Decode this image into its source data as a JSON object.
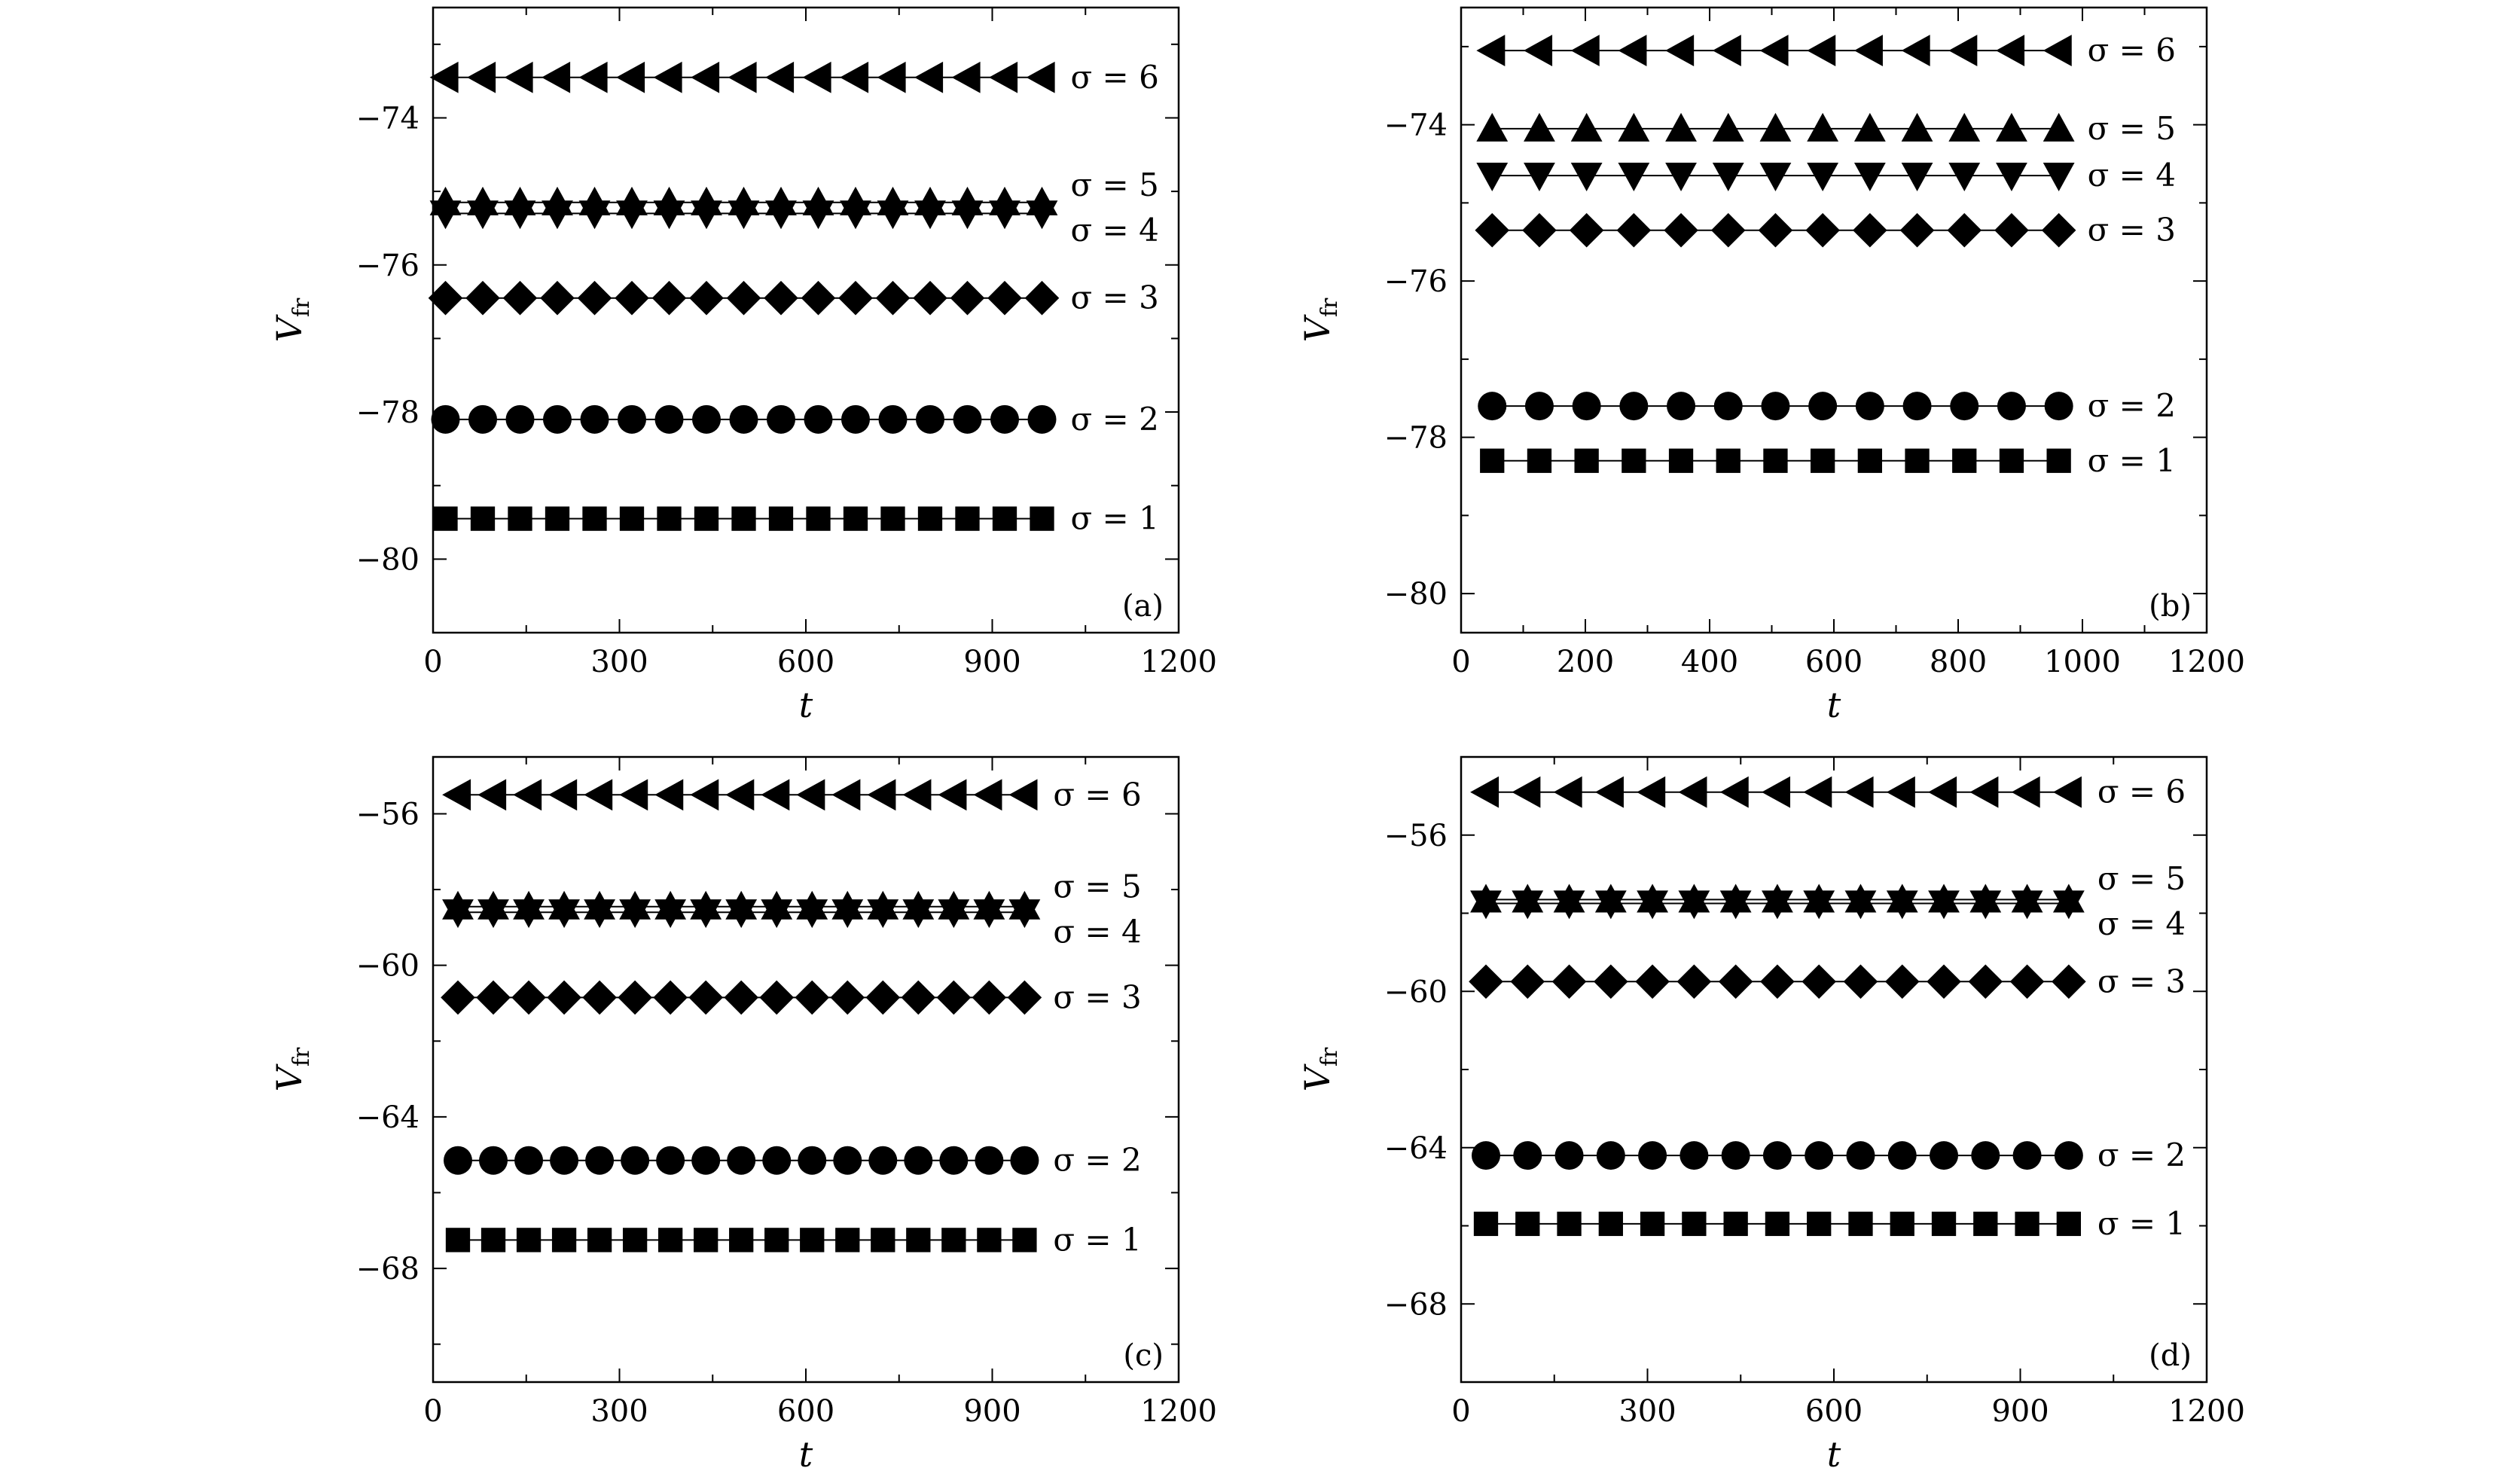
{
  "figure": {
    "chart_data": [
      {
        "type": "scatter",
        "panel_label": "(a)",
        "xlabel": "t",
        "ylabel_main": "V",
        "ylabel_sub": "fr",
        "xlim": [
          0,
          1200
        ],
        "ylim": [
          -81,
          -72.5
        ],
        "xticks": [
          0,
          300,
          600,
          900,
          1200
        ],
        "yticks": [
          -80,
          -78,
          -76,
          -74
        ],
        "series": [
          {
            "name": "σ = 6",
            "marker": "triangle-left",
            "y": -73.45,
            "x": [
              20,
              80,
              140,
              200,
              260,
              320,
              380,
              440,
              500,
              560,
              620,
              680,
              740,
              800,
              860,
              920,
              980
            ]
          },
          {
            "name": "σ = 5",
            "marker": "triangle-up",
            "y": -75.15,
            "x": [
              20,
              80,
              140,
              200,
              260,
              320,
              380,
              440,
              500,
              560,
              620,
              680,
              740,
              800,
              860,
              920,
              980
            ]
          },
          {
            "name": "σ = 4",
            "marker": "triangle-down",
            "y": -75.3,
            "x": [
              20,
              80,
              140,
              200,
              260,
              320,
              380,
              440,
              500,
              560,
              620,
              680,
              740,
              800,
              860,
              920,
              980
            ]
          },
          {
            "name": "σ = 3",
            "marker": "diamond",
            "y": -76.45,
            "x": [
              20,
              80,
              140,
              200,
              260,
              320,
              380,
              440,
              500,
              560,
              620,
              680,
              740,
              800,
              860,
              920,
              980
            ]
          },
          {
            "name": "σ = 2",
            "marker": "circle",
            "y": -78.1,
            "x": [
              20,
              80,
              140,
              200,
              260,
              320,
              380,
              440,
              500,
              560,
              620,
              680,
              740,
              800,
              860,
              920,
              980
            ]
          },
          {
            "name": "σ = 1",
            "marker": "square",
            "y": -79.45,
            "x": [
              20,
              80,
              140,
              200,
              260,
              320,
              380,
              440,
              500,
              560,
              620,
              680,
              740,
              800,
              860,
              920,
              980
            ]
          }
        ]
      },
      {
        "type": "scatter",
        "panel_label": "(b)",
        "xlabel": "t",
        "ylabel_main": "V",
        "ylabel_sub": "fr",
        "xlim": [
          0,
          1200
        ],
        "ylim": [
          -80.5,
          -72.5
        ],
        "xticks": [
          0,
          200,
          400,
          600,
          800,
          1000,
          1200
        ],
        "yticks": [
          -80,
          -78,
          -76,
          -74
        ],
        "series": [
          {
            "name": "σ = 6",
            "marker": "triangle-left",
            "y": -73.05,
            "x": [
              50,
              126,
              202,
              278,
              354,
              430,
              506,
              582,
              658,
              734,
              810,
              886,
              962
            ]
          },
          {
            "name": "σ = 5",
            "marker": "triangle-up",
            "y": -74.05,
            "x": [
              50,
              126,
              202,
              278,
              354,
              430,
              506,
              582,
              658,
              734,
              810,
              886,
              962
            ]
          },
          {
            "name": "σ = 4",
            "marker": "triangle-down",
            "y": -74.65,
            "x": [
              50,
              126,
              202,
              278,
              354,
              430,
              506,
              582,
              658,
              734,
              810,
              886,
              962
            ]
          },
          {
            "name": "σ = 3",
            "marker": "diamond",
            "y": -75.35,
            "x": [
              50,
              126,
              202,
              278,
              354,
              430,
              506,
              582,
              658,
              734,
              810,
              886,
              962
            ]
          },
          {
            "name": "σ = 2",
            "marker": "circle",
            "y": -77.6,
            "x": [
              50,
              126,
              202,
              278,
              354,
              430,
              506,
              582,
              658,
              734,
              810,
              886,
              962
            ]
          },
          {
            "name": "σ = 1",
            "marker": "square",
            "y": -78.3,
            "x": [
              50,
              126,
              202,
              278,
              354,
              430,
              506,
              582,
              658,
              734,
              810,
              886,
              962
            ]
          }
        ]
      },
      {
        "type": "scatter",
        "panel_label": "(c)",
        "xlabel": "t",
        "ylabel_main": "V",
        "ylabel_sub": "fr",
        "xlim": [
          0,
          1200
        ],
        "ylim": [
          -71,
          -54.5
        ],
        "xticks": [
          0,
          300,
          600,
          900,
          1200
        ],
        "yticks": [
          -68,
          -64,
          -60,
          -56
        ],
        "series": [
          {
            "name": "σ = 6",
            "marker": "triangle-left",
            "y": -55.5,
            "x": [
              40,
              97,
              154,
              211,
              268,
              325,
              382,
              439,
              496,
              553,
              610,
              667,
              724,
              781,
              838,
              895,
              952
            ]
          },
          {
            "name": "σ = 5",
            "marker": "triangle-up",
            "y": -58.45,
            "x": [
              40,
              97,
              154,
              211,
              268,
              325,
              382,
              439,
              496,
              553,
              610,
              667,
              724,
              781,
              838,
              895,
              952
            ]
          },
          {
            "name": "σ = 4",
            "marker": "triangle-down",
            "y": -58.6,
            "x": [
              40,
              97,
              154,
              211,
              268,
              325,
              382,
              439,
              496,
              553,
              610,
              667,
              724,
              781,
              838,
              895,
              952
            ]
          },
          {
            "name": "σ = 3",
            "marker": "diamond",
            "y": -60.85,
            "x": [
              40,
              97,
              154,
              211,
              268,
              325,
              382,
              439,
              496,
              553,
              610,
              667,
              724,
              781,
              838,
              895,
              952
            ]
          },
          {
            "name": "σ = 2",
            "marker": "circle",
            "y": -65.15,
            "x": [
              40,
              97,
              154,
              211,
              268,
              325,
              382,
              439,
              496,
              553,
              610,
              667,
              724,
              781,
              838,
              895,
              952
            ]
          },
          {
            "name": "σ = 1",
            "marker": "square",
            "y": -67.25,
            "x": [
              40,
              97,
              154,
              211,
              268,
              325,
              382,
              439,
              496,
              553,
              610,
              667,
              724,
              781,
              838,
              895,
              952
            ]
          }
        ]
      },
      {
        "type": "scatter",
        "panel_label": "(d)",
        "xlabel": "t",
        "ylabel_main": "V",
        "ylabel_sub": "fr",
        "xlim": [
          0,
          1200
        ],
        "ylim": [
          -70,
          -54
        ],
        "xticks": [
          0,
          300,
          600,
          900,
          1200
        ],
        "yticks": [
          -68,
          -64,
          -60,
          -56
        ],
        "series": [
          {
            "name": "σ = 6",
            "marker": "triangle-left",
            "y": -54.9,
            "x": [
              40,
              107,
              174,
              241,
              308,
              375,
              442,
              509,
              576,
              643,
              710,
              777,
              844,
              911,
              978
            ]
          },
          {
            "name": "σ = 5",
            "marker": "triangle-up",
            "y": -57.65,
            "x": [
              40,
              107,
              174,
              241,
              308,
              375,
              442,
              509,
              576,
              643,
              710,
              777,
              844,
              911,
              978
            ]
          },
          {
            "name": "σ = 4",
            "marker": "triangle-down",
            "y": -57.75,
            "x": [
              40,
              107,
              174,
              241,
              308,
              375,
              442,
              509,
              576,
              643,
              710,
              777,
              844,
              911,
              978
            ]
          },
          {
            "name": "σ = 3",
            "marker": "diamond",
            "y": -59.75,
            "x": [
              40,
              107,
              174,
              241,
              308,
              375,
              442,
              509,
              576,
              643,
              710,
              777,
              844,
              911,
              978
            ]
          },
          {
            "name": "σ = 2",
            "marker": "circle",
            "y": -64.2,
            "x": [
              40,
              107,
              174,
              241,
              308,
              375,
              442,
              509,
              576,
              643,
              710,
              777,
              844,
              911,
              978
            ]
          },
          {
            "name": "σ = 1",
            "marker": "square",
            "y": -65.95,
            "x": [
              40,
              107,
              174,
              241,
              308,
              375,
              442,
              509,
              576,
              643,
              710,
              777,
              844,
              911,
              978
            ]
          }
        ]
      }
    ]
  }
}
